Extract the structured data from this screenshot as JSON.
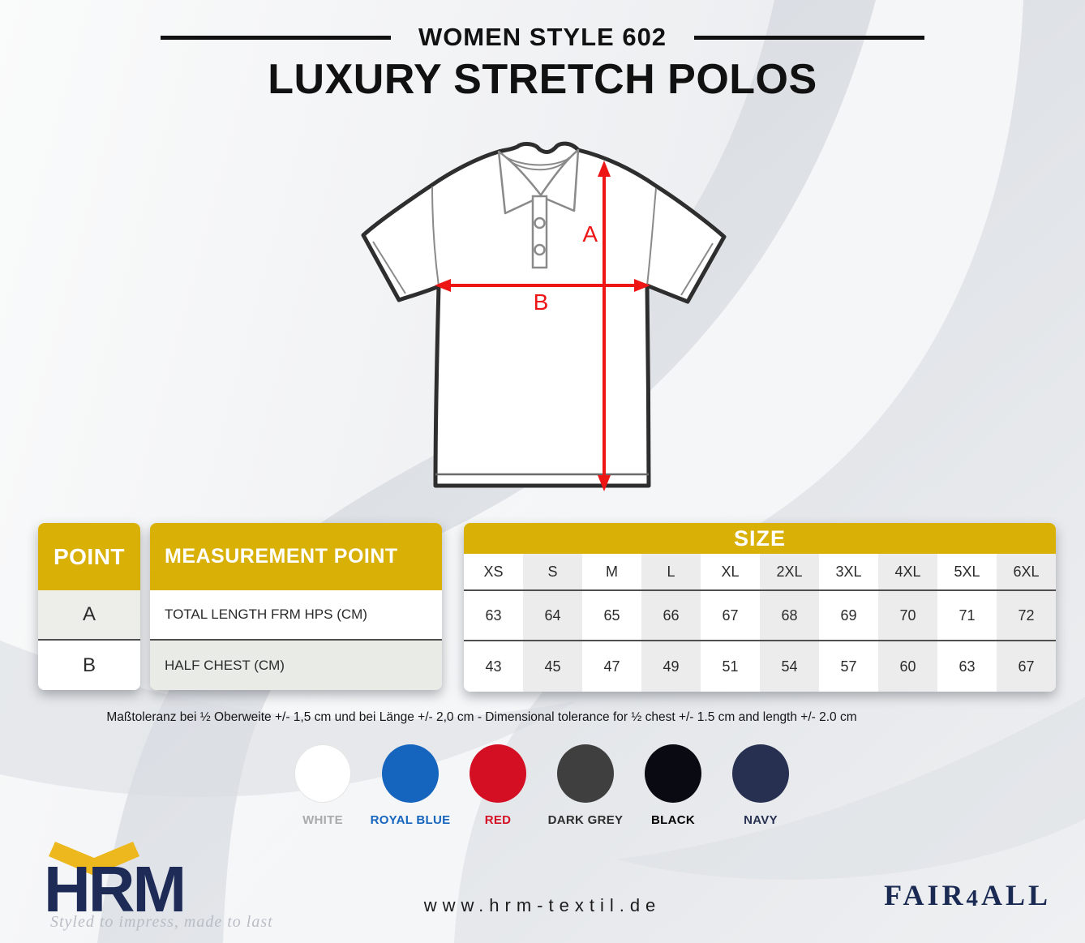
{
  "header": {
    "style_line": "WOMEN STYLE 602",
    "title": "LUXURY STRETCH POLOS"
  },
  "diagram": {
    "label_a": "A",
    "label_b": "B"
  },
  "tables": {
    "point": {
      "header": "POINT",
      "rows": [
        "A",
        "B"
      ]
    },
    "measurement": {
      "header": "MEASUREMENT POINT",
      "rows": [
        "TOTAL LENGTH FRM HPS (CM)",
        "HALF CHEST (CM)"
      ]
    },
    "size": {
      "header": "SIZE",
      "columns": [
        "XS",
        "S",
        "M",
        "L",
        "XL",
        "2XL",
        "3XL",
        "4XL",
        "5XL",
        "6XL"
      ],
      "rows": [
        {
          "point": "A",
          "values": [
            63,
            64,
            65,
            66,
            67,
            68,
            69,
            70,
            71,
            72
          ]
        },
        {
          "point": "B",
          "values": [
            43,
            45,
            47,
            49,
            51,
            54,
            57,
            60,
            63,
            67
          ]
        }
      ]
    }
  },
  "tolerance_text": "Maßtoleranz bei ½ Oberweite +/- 1,5 cm und bei Länge +/- 2,0 cm - Dimensional tolerance for ½ chest +/- 1.5 cm and length +/- 2.0 cm",
  "colorways": [
    {
      "name": "WHITE",
      "hex": "#ffffff",
      "label_color": "#aaaaaa"
    },
    {
      "name": "ROYAL BLUE",
      "hex": "#1565be",
      "label_color": "#1565be"
    },
    {
      "name": "RED",
      "hex": "#d50f23",
      "label_color": "#d50f23"
    },
    {
      "name": "DARK GREY",
      "hex": "#3f3f3f",
      "label_color": "#2e2e2e"
    },
    {
      "name": "BLACK",
      "hex": "#0a0a12",
      "label_color": "#000000"
    },
    {
      "name": "NAVY",
      "hex": "#273050",
      "label_color": "#273050"
    }
  ],
  "footer": {
    "logo_text": "HRM",
    "tagline": "Styled to impress, made to last",
    "website": "www.hrm-textil.de",
    "fair4all": [
      "FAIR",
      "4",
      "ALL"
    ]
  },
  "brand_colors": {
    "table_gold": "#d9b005",
    "logo_navy": "#1e2b57",
    "logo_gold": "#edb71e",
    "arrow_red": "#ee1515"
  }
}
